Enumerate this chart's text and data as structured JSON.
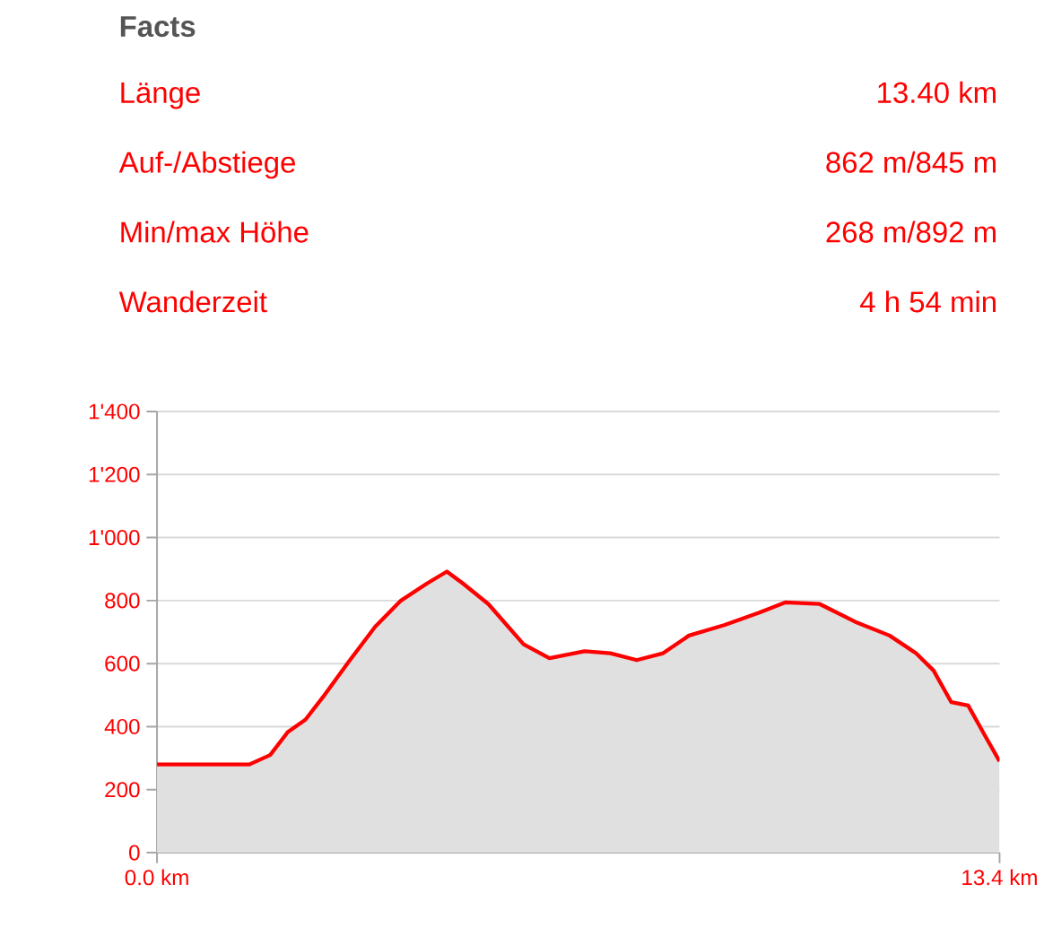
{
  "chart_data": [
    {
      "type": "other",
      "title": "Facts",
      "annotations": [
        "Länge",
        "13.40 km",
        "Auf-/Abstiege",
        "862 m/845 m",
        "Min/max Höhe",
        "268 m/892 m",
        "Wanderzeit",
        "4 h 54 min"
      ]
    },
    {
      "type": "area",
      "x": [
        0,
        1.47,
        1.8,
        2.08,
        2.36,
        2.64,
        3.05,
        3.47,
        3.88,
        4.3,
        4.61,
        4.86,
        5.27,
        5.83,
        6.24,
        6.8,
        7.21,
        7.63,
        8.05,
        8.46,
        9.02,
        9.57,
        9.99,
        10.54,
        11.1,
        11.65,
        12.07,
        12.35,
        12.63,
        12.9,
        13.18,
        13.4
      ],
      "series": [
        {
          "color": "#ff0000",
          "values": [
            280,
            280,
            310,
            383,
            422,
            494,
            606,
            717,
            800,
            855,
            892,
            855,
            789,
            661,
            617,
            639,
            633,
            611,
            633,
            689,
            722,
            761,
            794,
            789,
            733,
            689,
            633,
            578,
            478,
            467,
            367,
            290
          ]
        }
      ],
      "xlim": [
        0,
        13.4
      ],
      "xticks": [
        {
          "value": 0,
          "label": "0.0 km"
        },
        {
          "value": 13.4,
          "label": "13.4 km"
        }
      ],
      "ylim": [
        0,
        1400
      ],
      "yticks": [
        0,
        200,
        400,
        600,
        800,
        {
          "value": 1000,
          "label": "1'000"
        },
        {
          "value": 1200,
          "label": "1'200"
        },
        {
          "value": 1400,
          "label": "1'400"
        }
      ],
      "grid": "y"
    }
  ]
}
